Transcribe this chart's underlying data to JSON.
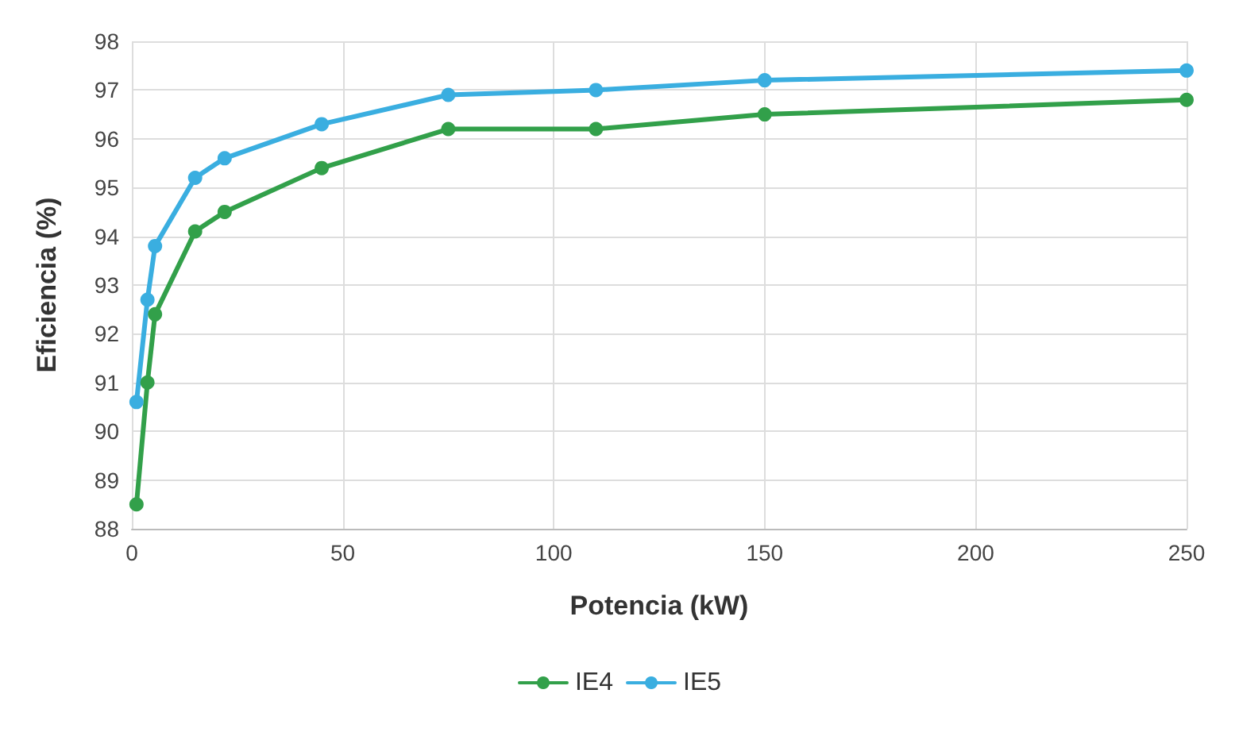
{
  "chart_data": {
    "type": "line",
    "xlabel": "Potencia (kW)",
    "ylabel": "Eficiencia (%)",
    "xlim": [
      0,
      250
    ],
    "xticks": [
      0,
      50,
      100,
      150,
      200,
      250
    ],
    "ylim": [
      88,
      98
    ],
    "yticks": [
      88,
      89,
      90,
      91,
      92,
      93,
      94,
      95,
      96,
      97,
      98
    ],
    "grid": true,
    "legend": "bottom",
    "marker": "circle",
    "line_style": "solid",
    "series": [
      {
        "name": "IE4",
        "color": "#32a04a",
        "x": [
          1.1,
          3.7,
          5.5,
          15,
          22,
          45,
          75,
          110,
          150,
          250
        ],
        "values": [
          88.5,
          91.0,
          92.4,
          94.1,
          94.5,
          95.4,
          96.2,
          96.2,
          96.5,
          96.8
        ]
      },
      {
        "name": "IE5",
        "color": "#3aaee0",
        "x": [
          1.1,
          3.7,
          5.5,
          15,
          22,
          45,
          75,
          110,
          150,
          250
        ],
        "values": [
          90.6,
          92.7,
          93.8,
          95.2,
          95.6,
          96.3,
          96.9,
          97.0,
          97.2,
          97.4
        ]
      }
    ]
  }
}
